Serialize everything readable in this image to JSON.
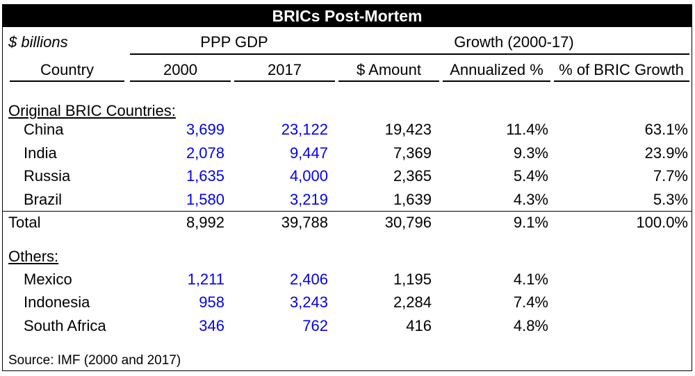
{
  "title": "BRICs Post-Mortem",
  "units_label": "$ billions",
  "group_headers": {
    "ppp": "PPP GDP",
    "growth": "Growth (2000-17)"
  },
  "columns": [
    "Country",
    "2000",
    "2017",
    "$ Amount",
    "Annualized %",
    "% of BRIC Growth"
  ],
  "sections": {
    "original": "Original BRIC Countries:",
    "others": "Others:"
  },
  "original_rows": [
    {
      "country": "China",
      "y2000": "3,699",
      "y2017": "23,122",
      "amount": "19,423",
      "annualized": "11.4%",
      "share": "63.1%"
    },
    {
      "country": "India",
      "y2000": "2,078",
      "y2017": "9,447",
      "amount": "7,369",
      "annualized": "9.3%",
      "share": "23.9%"
    },
    {
      "country": "Russia",
      "y2000": "1,635",
      "y2017": "4,000",
      "amount": "2,365",
      "annualized": "5.4%",
      "share": "7.7%"
    },
    {
      "country": "Brazil",
      "y2000": "1,580",
      "y2017": "3,219",
      "amount": "1,639",
      "annualized": "4.3%",
      "share": "5.3%"
    }
  ],
  "total_row": {
    "country": "Total",
    "y2000": "8,992",
    "y2017": "39,788",
    "amount": "30,796",
    "annualized": "9.1%",
    "share": "100.0%"
  },
  "other_rows": [
    {
      "country": "Mexico",
      "y2000": "1,211",
      "y2017": "2,406",
      "amount": "1,195",
      "annualized": "4.1%"
    },
    {
      "country": "Indonesia",
      "y2000": "958",
      "y2017": "3,243",
      "amount": "2,284",
      "annualized": "7.4%"
    },
    {
      "country": "South Africa",
      "y2000": "346",
      "y2017": "762",
      "amount": "416",
      "annualized": "4.8%"
    }
  ],
  "source": "Source: IMF (2000 and 2017)"
}
